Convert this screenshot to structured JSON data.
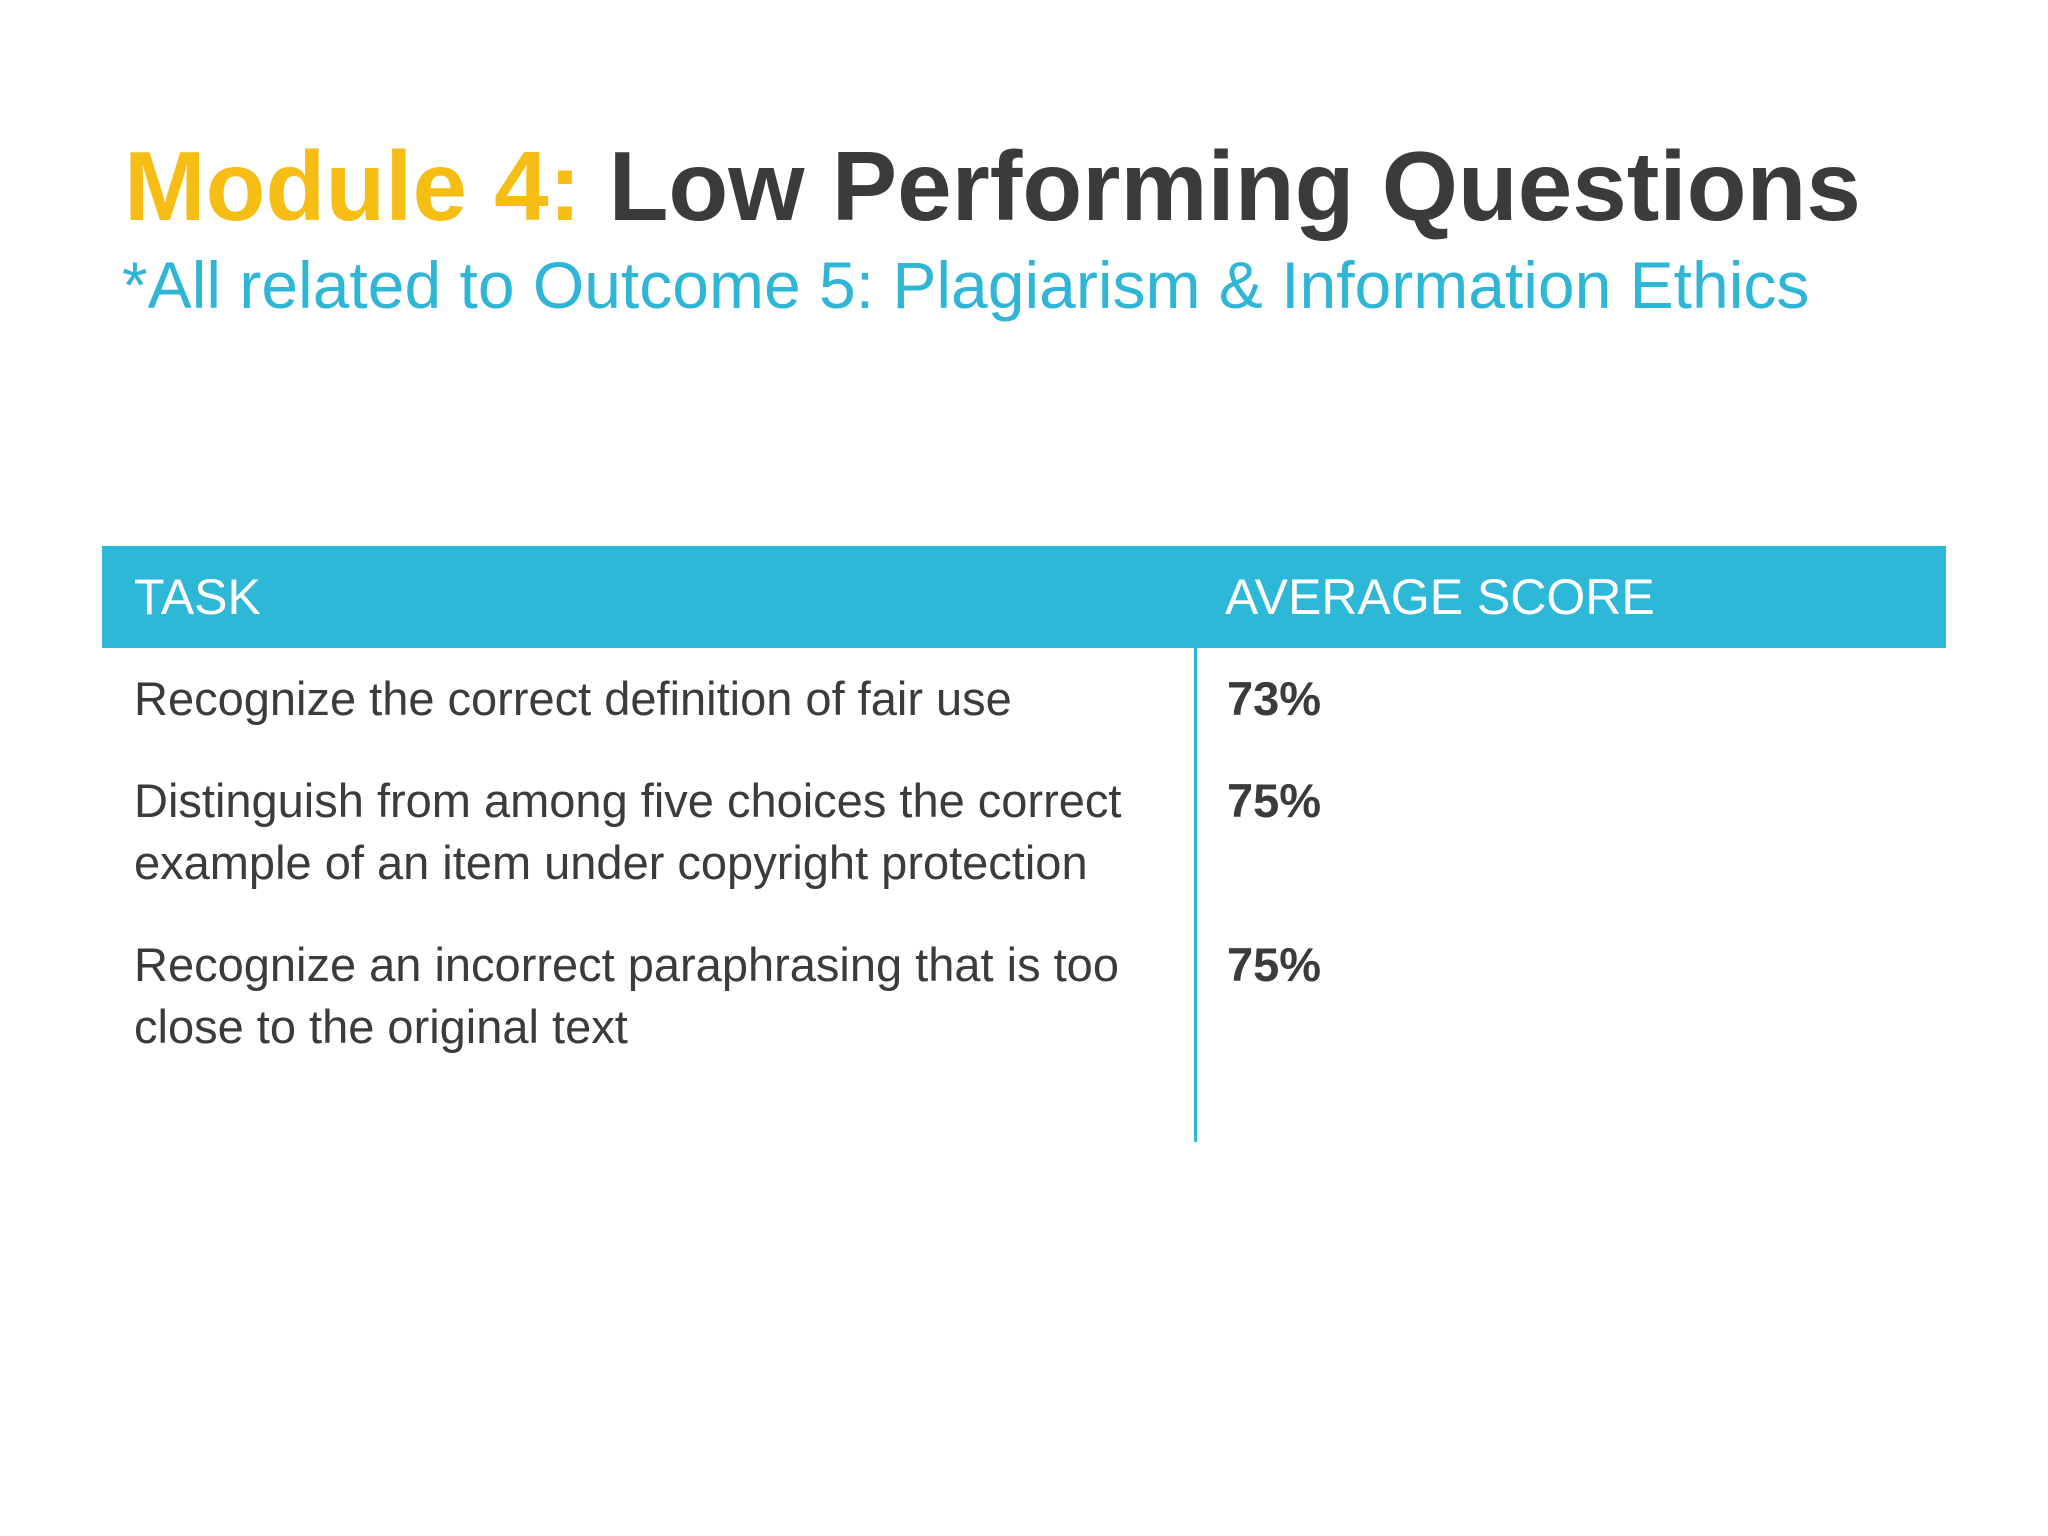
{
  "slide": {
    "title_accent": "Module 4:",
    "title_rest": "Low Performing Questions",
    "subtitle": "*All related to Outcome 5: Plagiarism & Information Ethics"
  },
  "table": {
    "headers": [
      "TASK",
      "AVERAGE SCORE"
    ],
    "rows": [
      {
        "task": "Recognize the correct definition of fair use",
        "score": "73%"
      },
      {
        "task": "Distinguish from among five choices the correct example of an item under copyright protection",
        "score": "75%"
      },
      {
        "task": "Recognize an incorrect paraphrasing that is too close to the original text",
        "score": "75%"
      }
    ]
  },
  "colors": {
    "accent": "#f6be15",
    "title_text": "#3b3b3b",
    "subtitle_text": "#2fb5d5",
    "table_header_bg": "#2db8d7",
    "body_text": "#3b3b3b"
  }
}
